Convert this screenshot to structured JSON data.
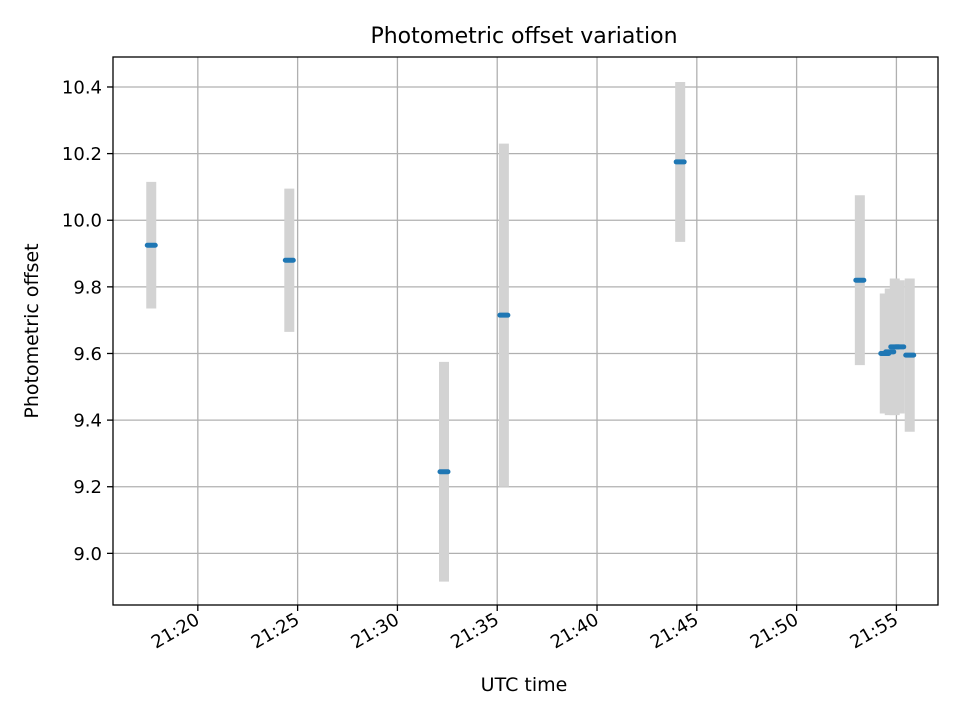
{
  "chart_data": {
    "type": "scatter",
    "title": "Photometric offset variation",
    "xlabel": "UTC time",
    "ylabel": "Photometric offset",
    "x_tick_labels": [
      "21:20",
      "21:25",
      "21:30",
      "21:35",
      "21:40",
      "21:45",
      "21:50",
      "21:55"
    ],
    "y_tick_labels": [
      "9.0",
      "9.2",
      "9.4",
      "9.6",
      "9.8",
      "10.0",
      "10.2",
      "10.4"
    ],
    "x_ticks": [
      "21:20",
      "21:25",
      "21:30",
      "21:35",
      "21:40",
      "21:45",
      "21:50",
      "21:55"
    ],
    "y_ticks": [
      9.0,
      9.2,
      9.4,
      9.6,
      9.8,
      10.0,
      10.2,
      10.4
    ],
    "xlim": [
      "21:15:45",
      "21:57:05"
    ],
    "ylim": [
      8.845,
      10.49
    ],
    "grid": true,
    "marker_color": "#1f77b4",
    "errorbar_color": "#d3d3d3",
    "points": [
      {
        "time": "21:17:40",
        "value": 9.925,
        "error": 0.19
      },
      {
        "time": "21:24:35",
        "value": 9.88,
        "error": 0.215
      },
      {
        "time": "21:32:20",
        "value": 9.245,
        "error": 0.33
      },
      {
        "time": "21:35:20",
        "value": 9.715,
        "error": 0.515
      },
      {
        "time": "21:44:10",
        "value": 10.175,
        "error": 0.24
      },
      {
        "time": "21:53:10",
        "value": 9.82,
        "error": 0.255
      },
      {
        "time": "21:54:25",
        "value": 9.6,
        "error": 0.18
      },
      {
        "time": "21:54:40",
        "value": 9.605,
        "error": 0.19
      },
      {
        "time": "21:54:55",
        "value": 9.62,
        "error": 0.205
      },
      {
        "time": "21:55:10",
        "value": 9.62,
        "error": 0.2
      },
      {
        "time": "21:55:40",
        "value": 9.595,
        "error": 0.23
      }
    ]
  }
}
